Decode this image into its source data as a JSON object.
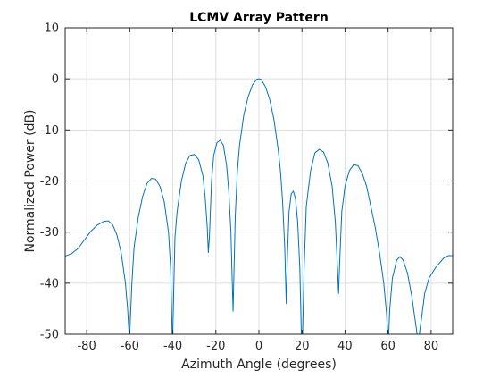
{
  "chart_data": {
    "type": "line",
    "title": "LCMV Array Pattern",
    "xlabel": "Azimuth Angle (degrees)",
    "ylabel": "Normalized Power (dB)",
    "xlim": [
      -90,
      90
    ],
    "ylim": [
      -50,
      10
    ],
    "xticks": [
      -80,
      -60,
      -40,
      -20,
      0,
      20,
      40,
      60,
      80
    ],
    "yticks": [
      10,
      0,
      -10,
      -20,
      -30,
      -40,
      -50
    ],
    "grid": true,
    "box": true,
    "line_color": "#0072bd",
    "series": [
      {
        "name": "",
        "points": [
          [
            -90,
            -34.7
          ],
          [
            -87,
            -34.2
          ],
          [
            -84,
            -33.2
          ],
          [
            -81,
            -31.5
          ],
          [
            -78,
            -29.8
          ],
          [
            -75,
            -28.6
          ],
          [
            -72,
            -27.9
          ],
          [
            -70,
            -27.8
          ],
          [
            -68,
            -28.5
          ],
          [
            -66,
            -30.5
          ],
          [
            -64,
            -34.0
          ],
          [
            -62,
            -40.0
          ],
          [
            -61,
            -45.0
          ],
          [
            -60.3,
            -50
          ],
          [
            -60.0,
            -50
          ],
          [
            -59.6,
            -46.0
          ],
          [
            -59,
            -40.0
          ],
          [
            -58,
            -33.0
          ],
          [
            -56,
            -27.0
          ],
          [
            -54,
            -23.0
          ],
          [
            -52,
            -20.5
          ],
          [
            -50,
            -19.5
          ],
          [
            -48,
            -19.6
          ],
          [
            -46,
            -21.0
          ],
          [
            -44,
            -24.0
          ],
          [
            -42,
            -30.0
          ],
          [
            -41,
            -37.0
          ],
          [
            -40.3,
            -50
          ],
          [
            -40.0,
            -50
          ],
          [
            -39.6,
            -42.0
          ],
          [
            -39,
            -31.0
          ],
          [
            -38,
            -26.0
          ],
          [
            -36,
            -20.0
          ],
          [
            -34,
            -16.5
          ],
          [
            -32,
            -15.0
          ],
          [
            -30,
            -14.8
          ],
          [
            -28,
            -15.8
          ],
          [
            -26,
            -19.0
          ],
          [
            -25,
            -23.0
          ],
          [
            -24,
            -29.0
          ],
          [
            -23.5,
            -34.0
          ],
          [
            -23,
            -31.0
          ],
          [
            -22,
            -20.0
          ],
          [
            -21,
            -15.0
          ],
          [
            -19.5,
            -12.5
          ],
          [
            -18,
            -12.0
          ],
          [
            -16.5,
            -13.0
          ],
          [
            -15,
            -17.0
          ],
          [
            -14,
            -22.0
          ],
          [
            -13,
            -30.0
          ],
          [
            -12.5,
            -38.0
          ],
          [
            -12,
            -45.5
          ],
          [
            -11.7,
            -40.0
          ],
          [
            -11,
            -27.0
          ],
          [
            -10,
            -18.0
          ],
          [
            -9,
            -13.0
          ],
          [
            -7,
            -7.0
          ],
          [
            -5,
            -3.5
          ],
          [
            -3,
            -1.2
          ],
          [
            -1,
            -0.1
          ],
          [
            0,
            0
          ],
          [
            1,
            -0.1
          ],
          [
            3,
            -1.5
          ],
          [
            5,
            -4.0
          ],
          [
            7,
            -8.0
          ],
          [
            9,
            -14.0
          ],
          [
            10,
            -18.0
          ],
          [
            11,
            -24.0
          ],
          [
            12,
            -33.0
          ],
          [
            12.7,
            -44.0
          ],
          [
            13.2,
            -35.0
          ],
          [
            14,
            -26.0
          ],
          [
            15,
            -22.5
          ],
          [
            16,
            -22.0
          ],
          [
            17,
            -23.5
          ],
          [
            18,
            -28.0
          ],
          [
            19,
            -37.0
          ],
          [
            19.7,
            -50
          ],
          [
            20.3,
            -50
          ],
          [
            21,
            -37.0
          ],
          [
            22,
            -25.0
          ],
          [
            24,
            -18.0
          ],
          [
            26,
            -14.5
          ],
          [
            28,
            -13.8
          ],
          [
            30,
            -14.3
          ],
          [
            32,
            -16.5
          ],
          [
            34,
            -21.0
          ],
          [
            35.5,
            -28.0
          ],
          [
            36.5,
            -37.0
          ],
          [
            37,
            -42.0
          ],
          [
            37.6,
            -35.0
          ],
          [
            38.5,
            -26.0
          ],
          [
            40,
            -21.0
          ],
          [
            42,
            -18.0
          ],
          [
            44,
            -16.8
          ],
          [
            46,
            -17.0
          ],
          [
            48,
            -18.5
          ],
          [
            50,
            -21.0
          ],
          [
            52,
            -25.0
          ],
          [
            54,
            -29.0
          ],
          [
            56,
            -34.0
          ],
          [
            58,
            -40.0
          ],
          [
            59.3,
            -46.0
          ],
          [
            59.8,
            -50
          ],
          [
            60.3,
            -50
          ],
          [
            60.8,
            -45.0
          ],
          [
            62,
            -39.0
          ],
          [
            64,
            -35.5
          ],
          [
            65.5,
            -34.8
          ],
          [
            67,
            -35.5
          ],
          [
            69,
            -38.0
          ],
          [
            71,
            -42.5
          ],
          [
            72.5,
            -47.0
          ],
          [
            73.5,
            -50
          ],
          [
            74.5,
            -50
          ],
          [
            75.5,
            -47.0
          ],
          [
            77,
            -42.0
          ],
          [
            79,
            -39.0
          ],
          [
            82,
            -37.0
          ],
          [
            84,
            -36.0
          ],
          [
            86,
            -35.0
          ],
          [
            88,
            -34.6
          ],
          [
            90,
            -34.6
          ]
        ]
      }
    ]
  }
}
